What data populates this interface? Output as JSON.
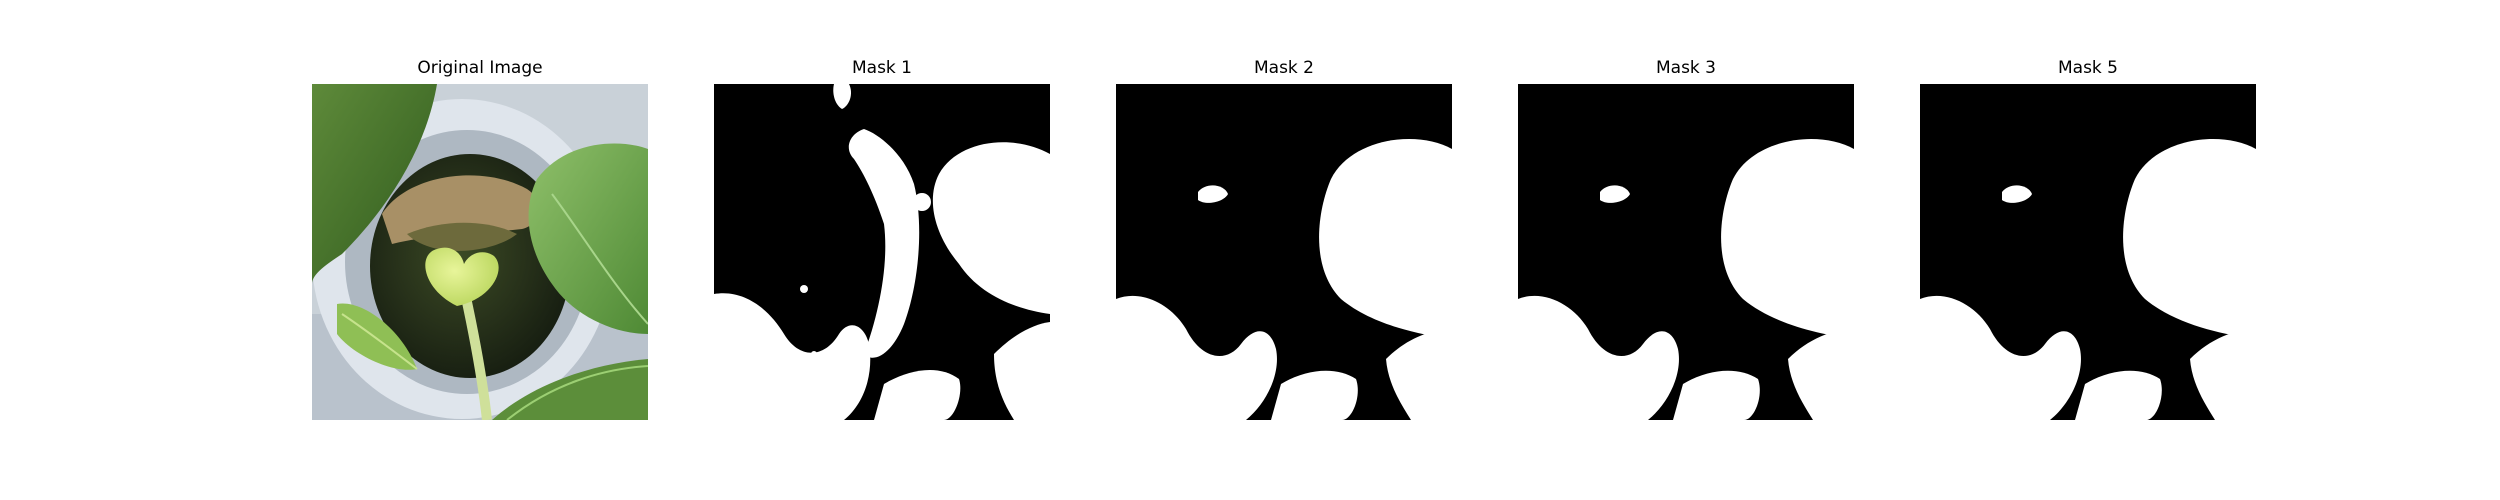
{
  "figure": {
    "panels": [
      {
        "id": "original",
        "title": "Original Image"
      },
      {
        "id": "mask1",
        "title": "Mask 1"
      },
      {
        "id": "mask2",
        "title": "Mask 2"
      },
      {
        "id": "mask3",
        "title": "Mask 3"
      },
      {
        "id": "mask5",
        "title": "Mask 5"
      }
    ]
  },
  "colors": {
    "page_background": "#ffffff",
    "mask_background": "#000000",
    "mask_foreground": "#ffffff",
    "title_text": "#000000"
  }
}
